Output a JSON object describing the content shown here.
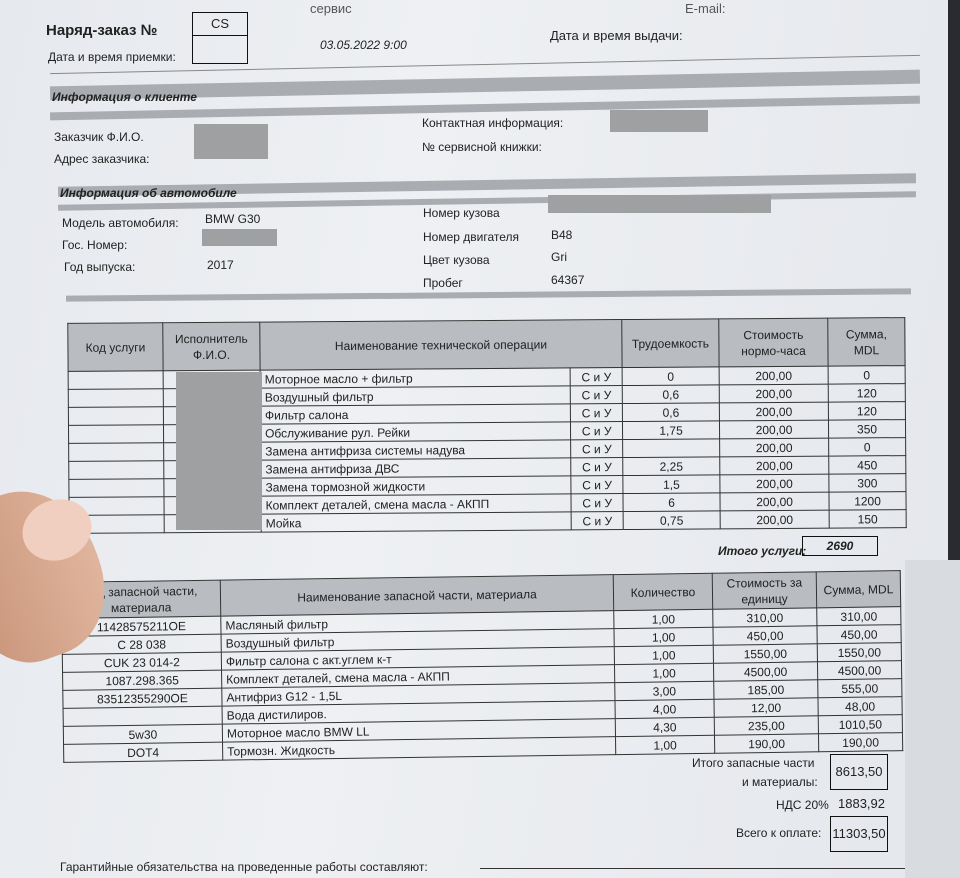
{
  "header": {
    "top_left_cut": "сервис",
    "top_right_cut": "E-mail:",
    "order_label": "Наряд-заказ №",
    "order_code": "CS",
    "intake_label": "Дата и время приемки:",
    "intake_value": "03.05.2022 9:00",
    "issue_label": "Дата и время выдачи:"
  },
  "client": {
    "section_title": "Информация о клиенте",
    "name_label": "Заказчик Ф.И.О.",
    "address_label": "Адрес заказчика:",
    "contact_label": "Контактная информация:",
    "service_book_label": "№ сервисной книжки:"
  },
  "vehicle": {
    "section_title": "Информация об автомобиле",
    "model_label": "Модель автомобиля:",
    "model_value": "BMW G30",
    "plate_label": "Гос. Номер:",
    "year_label": "Год выпуска:",
    "year_value": "2017",
    "body_no_label": "Номер кузова",
    "engine_label": "Номер двигателя",
    "engine_value": "B48",
    "color_label": "Цвет кузова",
    "color_value": "Gri",
    "mileage_label": "Пробег",
    "mileage_value": "64367"
  },
  "services": {
    "columns": [
      "Код услуги",
      "Исполнитель Ф.И.О.",
      "Наименование технической операции",
      "Трудоемкость",
      "Стоимость нормо-часа",
      "Сумма, MDL"
    ],
    "rows": [
      {
        "name": "Моторное масло + фильтр",
        "type": "С и У",
        "hours": "0",
        "rate": "200,00",
        "sum": "0"
      },
      {
        "name": "Воздушный фильтр",
        "type": "С и У",
        "hours": "0,6",
        "rate": "200,00",
        "sum": "120"
      },
      {
        "name": "Фильтр салона",
        "type": "С и У",
        "hours": "0,6",
        "rate": "200,00",
        "sum": "120"
      },
      {
        "name": "Обслуживание рул. Рейки",
        "type": "С и У",
        "hours": "1,75",
        "rate": "200,00",
        "sum": "350"
      },
      {
        "name": "Замена антифриза системы надува",
        "type": "С и У",
        "hours": "",
        "rate": "200,00",
        "sum": "0"
      },
      {
        "name": "Замена антифриза ДВС",
        "type": "С и У",
        "hours": "2,25",
        "rate": "200,00",
        "sum": "450"
      },
      {
        "name": "Замена тормозной жидкости",
        "type": "С и У",
        "hours": "1,5",
        "rate": "200,00",
        "sum": "300"
      },
      {
        "name": "Комплект деталей, смена масла - АКПП",
        "type": "С и У",
        "hours": "6",
        "rate": "200,00",
        "sum": "1200"
      },
      {
        "name": "Мойка",
        "type": "С и У",
        "hours": "0,75",
        "rate": "200,00",
        "sum": "150"
      }
    ],
    "total_label": "Итого услуги:",
    "total_value": "2690"
  },
  "parts": {
    "columns": [
      "Код запасной части, материала",
      "Наименование запасной части, материала",
      "Количество",
      "Стоимость за единицу",
      "Сумма, MDL"
    ],
    "rows": [
      {
        "code": "11428575211OE",
        "name": "Масляный фильтр",
        "qty": "1,00",
        "price": "310,00",
        "sum": "310,00"
      },
      {
        "code": "C 28 038",
        "name": "Воздушный фильтр",
        "qty": "1,00",
        "price": "450,00",
        "sum": "450,00"
      },
      {
        "code": "CUK 23 014-2",
        "name": "Фильтр салона с акт.углем к-т",
        "qty": "1,00",
        "price": "1550,00",
        "sum": "1550,00"
      },
      {
        "code": "1087.298.365",
        "name": "Комплект деталей, смена масла - АКПП",
        "qty": "1,00",
        "price": "4500,00",
        "sum": "4500,00"
      },
      {
        "code": "83512355290OE",
        "name": "Антифриз G12 - 1,5L",
        "qty": "3,00",
        "price": "185,00",
        "sum": "555,00"
      },
      {
        "code": "",
        "name": "Вода дистилиров.",
        "qty": "4,00",
        "price": "12,00",
        "sum": "48,00"
      },
      {
        "code": "5w30",
        "name": "Моторное масло BMW LL",
        "qty": "4,30",
        "price": "235,00",
        "sum": "1010,50"
      },
      {
        "code": "DOT4",
        "name": "Тормозн. Жидкость",
        "qty": "1,00",
        "price": "190,00",
        "sum": "190,00"
      }
    ],
    "total_label_1": "Итого запасные части",
    "total_label_2": "и материалы:",
    "total_value": "8613,50",
    "vat_label": "НДС 20%",
    "vat_value": "1883,92",
    "grand_label": "Всего к оплате:",
    "grand_value": "11303,50"
  },
  "footer": {
    "warranty_label": "Гарантийные обязательства на проведенные работы составляют:"
  }
}
